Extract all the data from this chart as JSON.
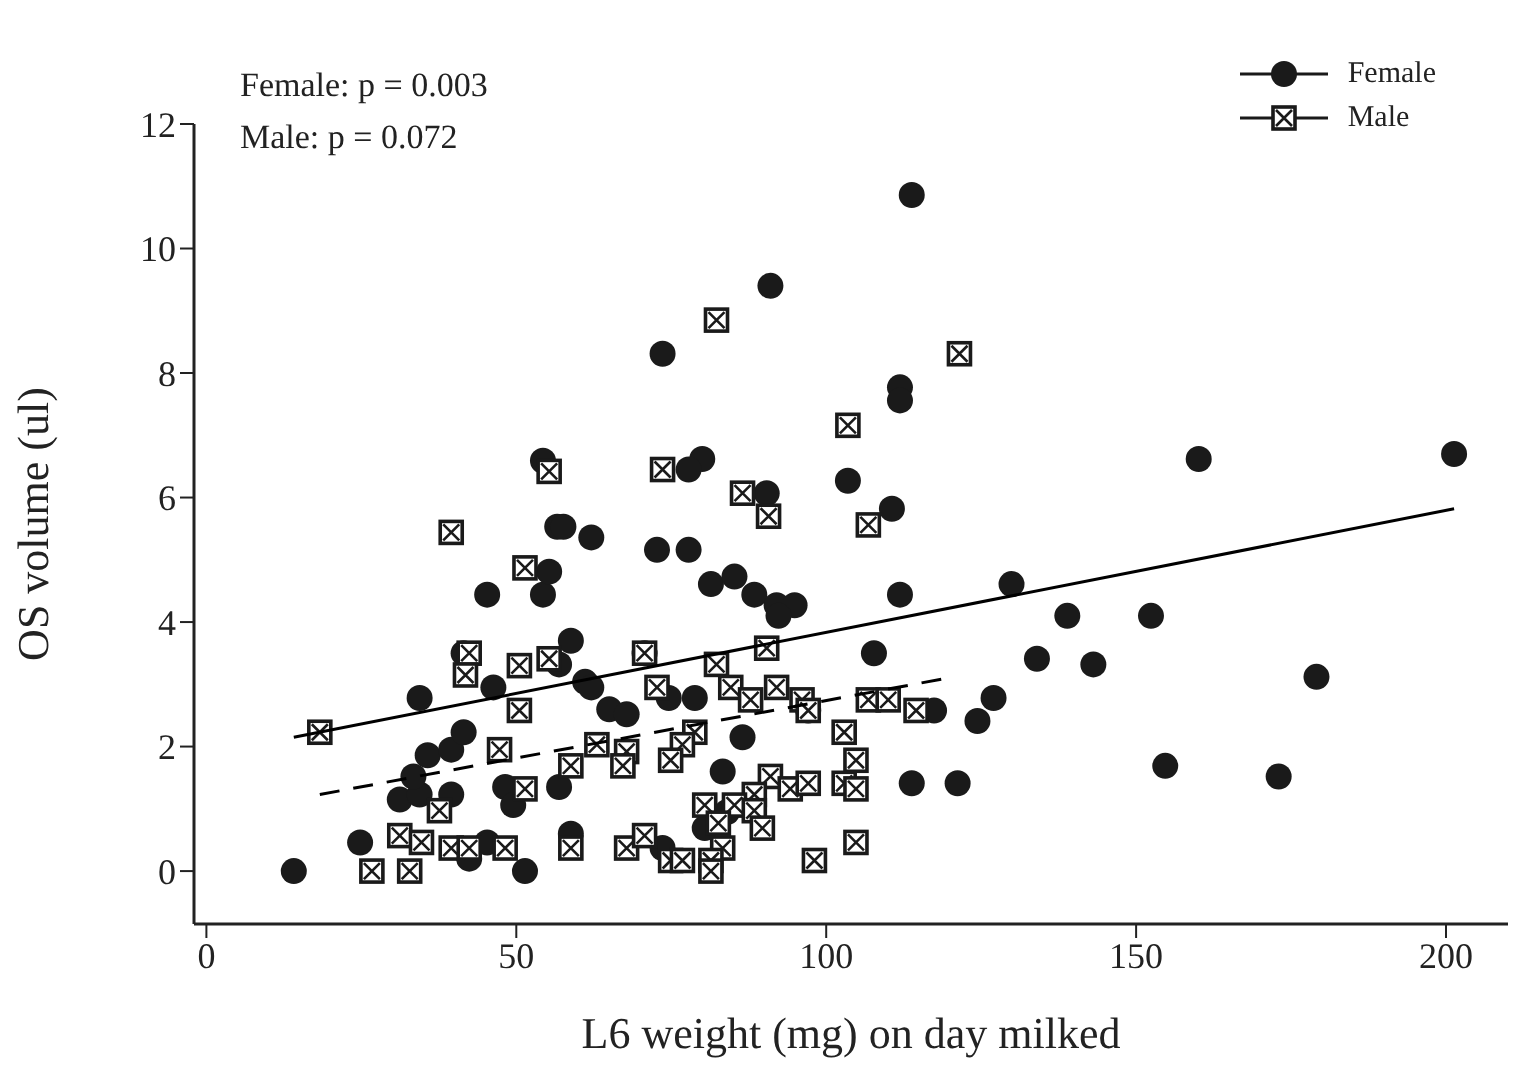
{
  "chart_data": {
    "type": "scatter",
    "xlabel": "L6 weight (mg) on day milked",
    "ylabel": "OS volume (ul)",
    "xlim": [
      -2,
      210
    ],
    "ylim": [
      -0.85,
      12
    ],
    "xticks": [
      0,
      50,
      100,
      150,
      200
    ],
    "yticks": [
      0,
      2,
      4,
      6,
      8,
      10,
      12
    ],
    "legend": "top right",
    "annotations": [
      "Female: p = 0.003",
      "Male: p = 0.072"
    ],
    "series": [
      {
        "name": "Female",
        "type": "scatter",
        "marker": "circle",
        "color": "#1a1a1a",
        "x": [
          14.1,
          24.8,
          31.2,
          34.4,
          39.5,
          33.4,
          35.7,
          39.5,
          41.5,
          34.4,
          45.3,
          42.4,
          51.4,
          48.2,
          49.5,
          56.9,
          58.8,
          46.3,
          41.5,
          58.8,
          56.9,
          61.1,
          62.1,
          65,
          67.8,
          45.3,
          54.3,
          55.3,
          56.6,
          57.6,
          62.1,
          54.3,
          113.8,
          91,
          73.6,
          111.9,
          111.9,
          80,
          77.8,
          90.4,
          103.5,
          110.6,
          72.7,
          77.8,
          81.4,
          85.2,
          88.4,
          92,
          94.9,
          92.3,
          111.9,
          129.9,
          107.7,
          134,
          70.7,
          74.6,
          78.8,
          97.1,
          117.4,
          127,
          124.4,
          86.5,
          83.3,
          113.8,
          121.2,
          84,
          80.4,
          73.6,
          160.1,
          201.3,
          138.9,
          152.4,
          143.1,
          179.1,
          154.7,
          173
        ],
        "values": [
          0,
          0.46,
          1.15,
          1.23,
          1.23,
          1.52,
          1.86,
          1.95,
          2.23,
          2.78,
          0.46,
          0.2,
          0,
          1.35,
          1.06,
          1.35,
          0.6,
          2.95,
          3.5,
          3.7,
          3.32,
          3.04,
          2.95,
          2.6,
          2.52,
          4.44,
          4.44,
          4.81,
          5.53,
          5.53,
          5.36,
          6.59,
          10.86,
          9.4,
          8.31,
          7.77,
          7.56,
          6.62,
          6.45,
          6.07,
          6.27,
          5.82,
          5.16,
          5.16,
          4.61,
          4.73,
          4.44,
          4.27,
          4.27,
          4.1,
          4.44,
          4.61,
          3.5,
          3.41,
          3.5,
          2.78,
          2.78,
          2.58,
          2.58,
          2.78,
          2.41,
          2.15,
          1.6,
          1.41,
          1.41,
          0.95,
          0.69,
          0.37,
          6.62,
          6.7,
          4.1,
          4.1,
          3.32,
          3.12,
          1.69,
          1.52
        ]
      },
      {
        "name": "Male",
        "type": "scatter",
        "marker": "square",
        "color": "#1a1a1a",
        "x": [
          55.3,
          82.3,
          121.5,
          103.5,
          73.6,
          86.5,
          90.7,
          106.8,
          39.5,
          51.4,
          42.4,
          41.8,
          50.5,
          55.3,
          50.5,
          18.3,
          47.3,
          58.8,
          63,
          67.8,
          67.2,
          51.4,
          37.6,
          31.2,
          34.7,
          39.5,
          42.4,
          48.2,
          58.8,
          67.8,
          26.7,
          32.8,
          90.4,
          82.3,
          72.7,
          84.6,
          87.8,
          92,
          96.1,
          70.7,
          97.1,
          106.8,
          110,
          114.5,
          78.8,
          76.8,
          74.9,
          102.9,
          104.8,
          91,
          94.2,
          97.1,
          102.9,
          104.8,
          88.4,
          80.4,
          85.2,
          88.4,
          82.6,
          89.7,
          70.7,
          83.3,
          104.8,
          74.9,
          76.8,
          81.4,
          81.4,
          98.1
        ],
        "values": [
          6.42,
          8.85,
          8.31,
          7.16,
          6.45,
          6.07,
          5.7,
          5.56,
          5.44,
          4.87,
          3.5,
          3.15,
          3.3,
          3.41,
          2.58,
          2.23,
          1.95,
          1.69,
          2.03,
          1.92,
          1.69,
          1.32,
          0.97,
          0.57,
          0.46,
          0.37,
          0.37,
          0.37,
          0.37,
          0.37,
          0,
          0,
          3.58,
          3.32,
          2.95,
          2.95,
          2.75,
          2.95,
          2.75,
          3.5,
          2.58,
          2.75,
          2.75,
          2.58,
          2.23,
          2.03,
          1.78,
          2.23,
          1.78,
          1.52,
          1.32,
          1.41,
          1.41,
          1.32,
          1.23,
          1.06,
          1.06,
          0.97,
          0.77,
          0.69,
          0.57,
          0.37,
          0.46,
          0.17,
          0.17,
          0.17,
          0,
          0.17
        ]
      },
      {
        "type": "line",
        "line_style": "solid",
        "color": "#000000",
        "x": [
          14.1,
          201.3
        ],
        "values": [
          2.15,
          5.82
        ]
      },
      {
        "type": "line",
        "line_style": "dashed",
        "color": "#000000",
        "x": [
          18.3,
          119
        ],
        "values": [
          1.23,
          3.09
        ]
      }
    ]
  }
}
